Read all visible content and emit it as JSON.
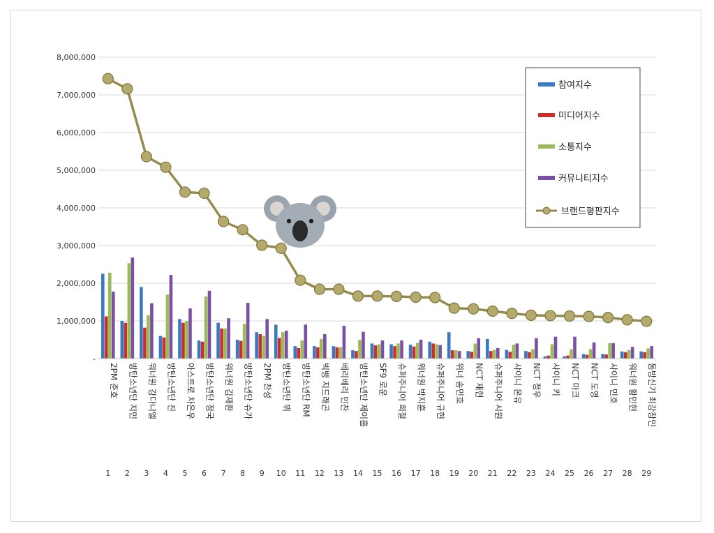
{
  "chart_data": {
    "type": "bar",
    "categories": [
      "2PM 준호",
      "방탄소년단 지민",
      "워너원 강다니엘",
      "방탄소년단 진",
      "아스트로 차은우",
      "방탄소년단 정국",
      "워너원 김재환",
      "방탄소년단 슈가",
      "2PM 찬성",
      "방탄소년단 뷔",
      "방탄소년단 RM",
      "빅뱅 지드래곤",
      "베리베리 민찬",
      "방탄소년단 제이홉",
      "SF9 로운",
      "슈퍼주니어 희철",
      "워너원 박지훈",
      "슈퍼주니어 규현",
      "위너 송민호",
      "NCT 재현",
      "슈퍼주니어 시원",
      "샤이니 온유",
      "NCT 정우",
      "샤이니 키",
      "NCT 마크",
      "NCT 도영",
      "샤이니 민호",
      "워너원 황민현",
      "동방신기 최강창민"
    ],
    "ranks": [
      "1",
      "2",
      "3",
      "4",
      "5",
      "6",
      "7",
      "8",
      "9",
      "10",
      "11",
      "12",
      "13",
      "14",
      "15",
      "16",
      "17",
      "18",
      "19",
      "20",
      "21",
      "22",
      "23",
      "24",
      "25",
      "26",
      "27",
      "28",
      "29"
    ],
    "series": [
      {
        "name": "참여지수",
        "type": "bar",
        "color": "#3a78c3",
        "values": [
          2250000,
          1000000,
          1900000,
          600000,
          1050000,
          480000,
          950000,
          500000,
          700000,
          900000,
          330000,
          330000,
          330000,
          220000,
          400000,
          380000,
          370000,
          450000,
          700000,
          200000,
          520000,
          230000,
          200000,
          60000,
          60000,
          120000,
          120000,
          190000,
          190000
        ]
      },
      {
        "name": "미디어지수",
        "type": "bar",
        "color": "#c9302c",
        "values": [
          1120000,
          950000,
          820000,
          560000,
          950000,
          450000,
          800000,
          470000,
          650000,
          550000,
          280000,
          300000,
          300000,
          200000,
          350000,
          330000,
          320000,
          400000,
          220000,
          180000,
          200000,
          180000,
          170000,
          80000,
          80000,
          100000,
          110000,
          170000,
          170000
        ]
      },
      {
        "name": "소통지수",
        "type": "bar",
        "color": "#9bbb59",
        "values": [
          2280000,
          2530000,
          1150000,
          1700000,
          1000000,
          1650000,
          800000,
          920000,
          600000,
          700000,
          480000,
          520000,
          300000,
          500000,
          380000,
          400000,
          420000,
          380000,
          220000,
          400000,
          230000,
          370000,
          250000,
          380000,
          250000,
          250000,
          410000,
          230000,
          270000
        ]
      },
      {
        "name": "커뮤니티지수",
        "type": "bar",
        "color": "#7b4fa3",
        "values": [
          1780000,
          2680000,
          1470000,
          2220000,
          1330000,
          1800000,
          1070000,
          1480000,
          1050000,
          740000,
          900000,
          650000,
          870000,
          710000,
          480000,
          480000,
          500000,
          360000,
          200000,
          540000,
          280000,
          400000,
          540000,
          580000,
          580000,
          430000,
          410000,
          310000,
          330000
        ]
      },
      {
        "name": "브랜드평판지수",
        "type": "line",
        "color": "#958b4f",
        "values": [
          7430000,
          7160000,
          5360000,
          5080000,
          4420000,
          4390000,
          3640000,
          3420000,
          3010000,
          2930000,
          2080000,
          1840000,
          1840000,
          1660000,
          1660000,
          1650000,
          1630000,
          1620000,
          1340000,
          1320000,
          1260000,
          1200000,
          1150000,
          1140000,
          1130000,
          1120000,
          1090000,
          1030000,
          990000
        ]
      }
    ],
    "yticks": [
      "-",
      "1,000,000",
      "2,000,000",
      "3,000,000",
      "4,000,000",
      "5,000,000",
      "6,000,000",
      "7,000,000",
      "8,000,000"
    ],
    "ylim": [
      0,
      8000000
    ],
    "grid": true,
    "legend_position": "top-right"
  },
  "decoration": {
    "icon": "koala-icon"
  }
}
